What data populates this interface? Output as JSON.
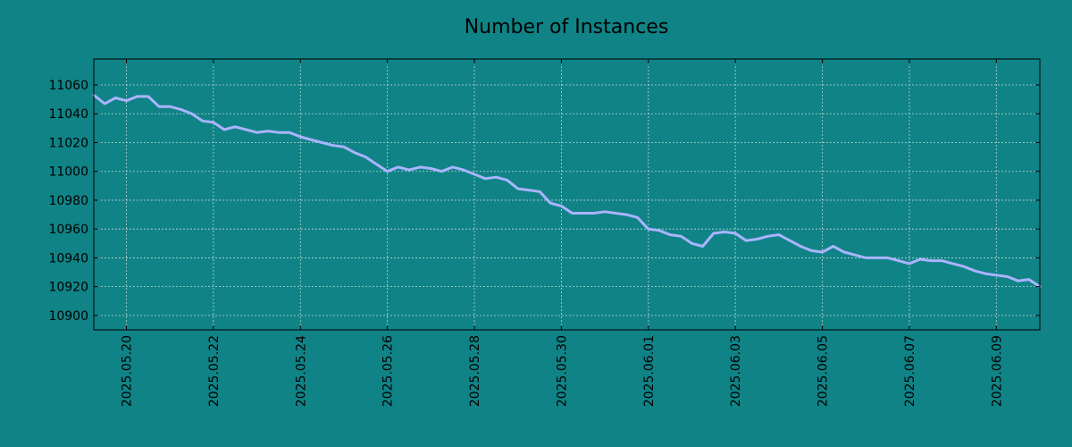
{
  "chart_data": {
    "type": "line",
    "title": "Number of Instances",
    "xlabel": "",
    "ylabel": "",
    "ylim": [
      10890,
      11078
    ],
    "xlim": [
      "2025-05-19 06:00",
      "2025-06-10 00:00"
    ],
    "grid": true,
    "background_color": "#108386",
    "line_color": "#aab4ff",
    "yticks": [
      10900,
      10920,
      10940,
      10960,
      10980,
      11000,
      11020,
      11040,
      11060
    ],
    "xticks": [
      "2025.05.20",
      "2025.05.22",
      "2025.05.24",
      "2025.05.26",
      "2025.05.28",
      "2025.05.30",
      "2025.06.01",
      "2025.06.03",
      "2025.06.05",
      "2025.06.07",
      "2025.06.09"
    ],
    "xtick_dates": [
      "2025-05-20",
      "2025-05-22",
      "2025-05-24",
      "2025-05-26",
      "2025-05-28",
      "2025-05-30",
      "2025-06-01",
      "2025-06-03",
      "2025-06-05",
      "2025-06-07",
      "2025-06-09"
    ],
    "series": [
      {
        "x": [
          "2025-05-19 06:00",
          "2025-05-19 12:00",
          "2025-05-19 18:00",
          "2025-05-20 00:00",
          "2025-05-20 06:00",
          "2025-05-20 12:00",
          "2025-05-20 18:00",
          "2025-05-21 00:00",
          "2025-05-21 06:00",
          "2025-05-21 12:00",
          "2025-05-21 18:00",
          "2025-05-22 00:00",
          "2025-05-22 06:00",
          "2025-05-22 12:00",
          "2025-05-22 18:00",
          "2025-05-23 00:00",
          "2025-05-23 06:00",
          "2025-05-23 12:00",
          "2025-05-23 18:00",
          "2025-05-24 00:00",
          "2025-05-24 06:00",
          "2025-05-24 12:00",
          "2025-05-24 18:00",
          "2025-05-25 00:00",
          "2025-05-25 06:00",
          "2025-05-25 12:00",
          "2025-05-25 18:00",
          "2025-05-26 00:00",
          "2025-05-26 06:00",
          "2025-05-26 12:00",
          "2025-05-26 18:00",
          "2025-05-27 00:00",
          "2025-05-27 06:00",
          "2025-05-27 12:00",
          "2025-05-27 18:00",
          "2025-05-28 00:00",
          "2025-05-28 06:00",
          "2025-05-28 12:00",
          "2025-05-28 18:00",
          "2025-05-29 00:00",
          "2025-05-29 06:00",
          "2025-05-29 12:00",
          "2025-05-29 18:00",
          "2025-05-30 00:00",
          "2025-05-30 06:00",
          "2025-05-30 12:00",
          "2025-05-30 18:00",
          "2025-05-31 00:00",
          "2025-05-31 06:00",
          "2025-05-31 12:00",
          "2025-05-31 18:00",
          "2025-06-01 00:00",
          "2025-06-01 06:00",
          "2025-06-01 12:00",
          "2025-06-01 18:00",
          "2025-06-02 00:00",
          "2025-06-02 06:00",
          "2025-06-02 12:00",
          "2025-06-02 18:00",
          "2025-06-03 00:00",
          "2025-06-03 06:00",
          "2025-06-03 12:00",
          "2025-06-03 18:00",
          "2025-06-04 00:00",
          "2025-06-04 06:00",
          "2025-06-04 12:00",
          "2025-06-04 18:00",
          "2025-06-05 00:00",
          "2025-06-05 06:00",
          "2025-06-05 12:00",
          "2025-06-05 18:00",
          "2025-06-06 00:00",
          "2025-06-06 06:00",
          "2025-06-06 12:00",
          "2025-06-06 18:00",
          "2025-06-07 00:00",
          "2025-06-07 06:00",
          "2025-06-07 12:00",
          "2025-06-07 18:00",
          "2025-06-08 00:00",
          "2025-06-08 06:00",
          "2025-06-08 12:00",
          "2025-06-08 18:00",
          "2025-06-09 00:00",
          "2025-06-09 06:00",
          "2025-06-09 12:00",
          "2025-06-09 18:00",
          "2025-06-10 00:00"
        ],
        "values": [
          11053,
          11047,
          11051,
          11049,
          11052,
          11052,
          11045,
          11045,
          11043,
          11040,
          11035,
          11034,
          11029,
          11031,
          11029,
          11027,
          11028,
          11027,
          11027,
          11024,
          11022,
          11020,
          11018,
          11017,
          11013,
          11010,
          11005,
          11000,
          11003,
          11001,
          11003,
          11002,
          11000,
          11003,
          11001,
          10998,
          10995,
          10996,
          10994,
          10988,
          10987,
          10986,
          10978,
          10976,
          10971,
          10971,
          10971,
          10972,
          10971,
          10970,
          10968,
          10960,
          10959,
          10956,
          10955,
          10950,
          10948,
          10957,
          10958,
          10957,
          10952,
          10953,
          10955,
          10956,
          10952,
          10948,
          10945,
          10944,
          10948,
          10944,
          10942,
          10940,
          10940,
          10940,
          10938,
          10936,
          10939,
          10938,
          10938,
          10936,
          10934,
          10931,
          10929,
          10928,
          10927,
          10924,
          10925,
          10920
        ]
      }
    ]
  }
}
